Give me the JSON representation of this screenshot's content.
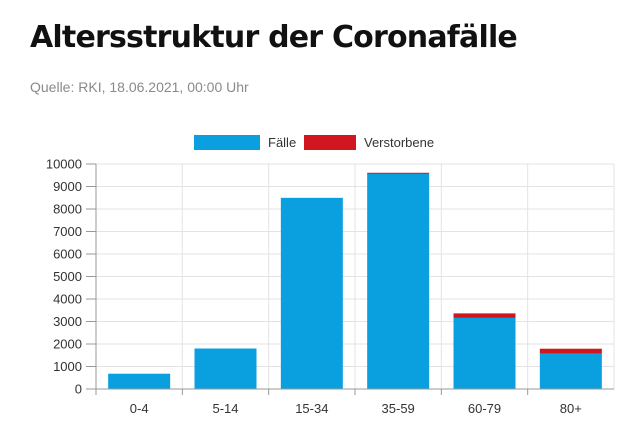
{
  "header": {
    "title": "Altersstruktur der Coronafälle",
    "source": "Quelle: RKI, 18.06.2021, 00:00 Uhr"
  },
  "colors": {
    "faelle": "#0aa0e0",
    "verstorbene": "#d0161f",
    "grid": "#e3e3e3",
    "axis": "#999999"
  },
  "chart_data": {
    "type": "bar",
    "stacked": true,
    "categories": [
      "0-4",
      "5-14",
      "15-34",
      "35-59",
      "60-79",
      "80+"
    ],
    "series": [
      {
        "name": "Fälle",
        "values": [
          680,
          1800,
          8490,
          9560,
          3160,
          1570
        ]
      },
      {
        "name": "Verstorbene",
        "values": [
          0,
          0,
          5,
          50,
          200,
          220
        ]
      }
    ],
    "ylim": [
      0,
      10000
    ],
    "yticks": [
      0,
      1000,
      2000,
      3000,
      4000,
      5000,
      6000,
      7000,
      8000,
      9000,
      10000
    ],
    "xlabel": "",
    "ylabel": "",
    "grid": true,
    "legend": "top-center"
  }
}
